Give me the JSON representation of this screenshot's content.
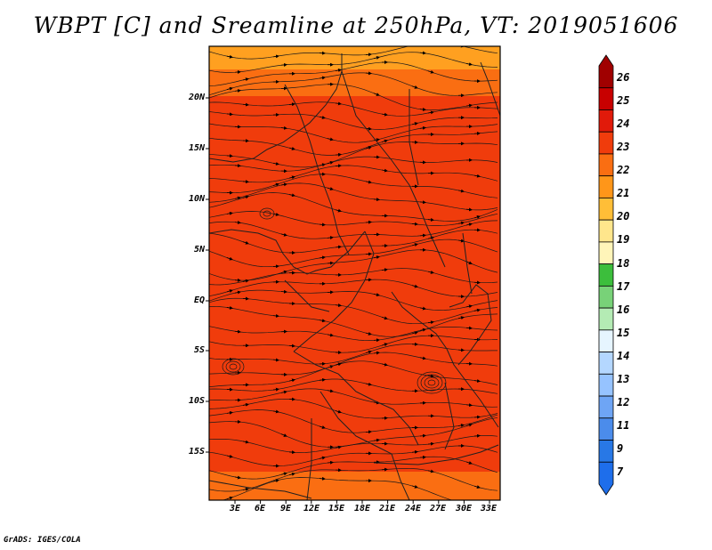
{
  "title": "WBPT [C] and Sreamline at 250hPa, VT: 2019051606",
  "map": {
    "y_ticks": [
      "20N",
      "15N",
      "10N",
      "5N",
      "EQ",
      "5S",
      "10S",
      "15S"
    ],
    "x_ticks": [
      "3E",
      "6E",
      "9E",
      "12E",
      "15E",
      "18E",
      "21E",
      "24E",
      "27E",
      "30E",
      "33E"
    ],
    "field_colors": {
      "base": "#f03c0c",
      "warm": "#fa6e12",
      "hot": "#e22a08",
      "edge": "#ffa020"
    }
  },
  "colorbar": {
    "levels": [
      "26",
      "25",
      "24",
      "23",
      "22",
      "21",
      "20",
      "19",
      "18",
      "17",
      "16",
      "15",
      "14",
      "13",
      "12",
      "11",
      "9",
      "7"
    ],
    "colors": [
      "#a00000",
      "#c80000",
      "#e11a0a",
      "#f03c0c",
      "#fa6e12",
      "#ff9619",
      "#ffbe37",
      "#ffe68c",
      "#fff5b9",
      "#3cbe3c",
      "#78d278",
      "#b4ebb4",
      "#e6f5ff",
      "#b4d7ff",
      "#96c3ff",
      "#6ea5f5",
      "#4b8ceb",
      "#2878e6",
      "#1e6eeb"
    ]
  },
  "credit": "GrADS: IGES/COLA"
}
